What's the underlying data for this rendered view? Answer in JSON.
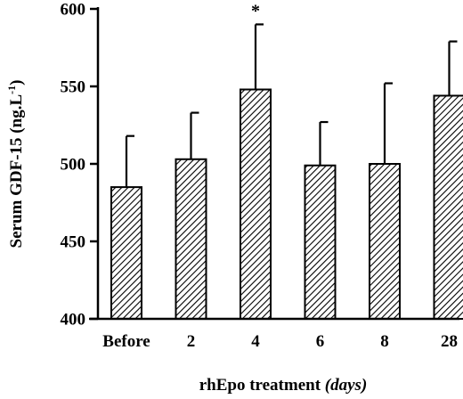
{
  "chart_data": {
    "type": "bar",
    "title": "",
    "xlabel_main": "rhEpo treatment ",
    "xlabel_unit": "(days)",
    "ylabel_main": "Serum GDF-15 (ng.L",
    "ylabel_sup": "-1",
    "ylabel_close": ")",
    "categories": [
      "Before",
      "2",
      "4",
      "6",
      "8",
      "28"
    ],
    "values": [
      485,
      503,
      548,
      499,
      500,
      544
    ],
    "error_upper": [
      518,
      533,
      590,
      527,
      552,
      579
    ],
    "annotations": [
      "",
      "",
      "*",
      "",
      "",
      ""
    ],
    "ylim": [
      400,
      600
    ],
    "yticks": [
      400,
      450,
      500,
      550,
      600
    ],
    "grid": false,
    "bar_fill": "hatched (diagonal black lines on white)",
    "bar_color": "#000000"
  }
}
